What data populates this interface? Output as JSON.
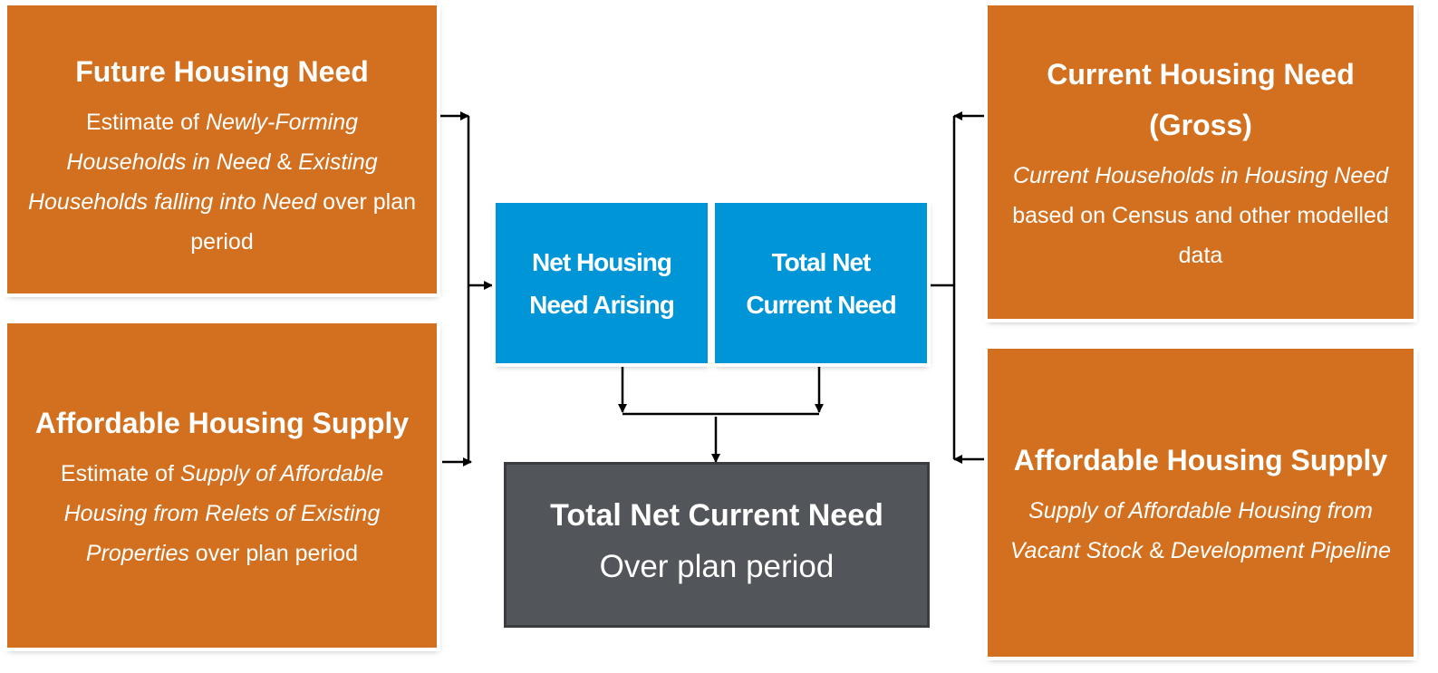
{
  "boxes": [
    {
      "title": "Future Housing Need",
      "body": [
        {
          "text": "Estimate of ",
          "italic": false
        },
        {
          "text": "Newly-Forming Households in Need",
          "italic": true
        },
        {
          "text": " & ",
          "italic": false
        },
        {
          "text": "Existing Households falling into Need",
          "italic": true
        },
        {
          "text": " over plan period",
          "italic": false
        }
      ]
    },
    {
      "title": "Affordable Housing Supply",
      "body": [
        {
          "text": "Estimate of ",
          "italic": false
        },
        {
          "text": "Supply of Affordable Housing from Relets of Existing Properties",
          "italic": true
        },
        {
          "text": " over plan period",
          "italic": false
        }
      ]
    },
    {
      "title": "Current Housing Need (Gross)",
      "body": [
        {
          "text": "Current Households in Housing Need",
          "italic": true
        },
        {
          "text": " based on Census and other modelled data",
          "italic": false
        }
      ]
    },
    {
      "title": "Affordable Housing Supply",
      "body": [
        {
          "text": "Supply of Affordable Housing from Vacant Stock",
          "italic": true
        },
        {
          "text": " & ",
          "italic": false
        },
        {
          "text": "Development Pipeline",
          "italic": true
        }
      ]
    }
  ],
  "center": {
    "left": "Net Housing Need Arising",
    "right": "Total Net Current Need"
  },
  "result": {
    "title": "Total Net Current Need",
    "subtitle": "Over plan period"
  }
}
